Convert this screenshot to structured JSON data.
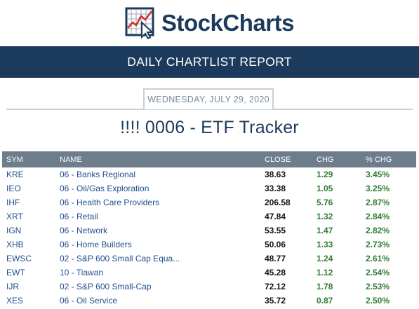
{
  "brand": {
    "logo_text": "StockCharts"
  },
  "banner": {
    "title": "DAILY CHARTLIST REPORT"
  },
  "report": {
    "date": "WEDNESDAY, JULY 29, 2020",
    "title": "!!!! 0006 - ETF Tracker"
  },
  "table": {
    "headers": {
      "sym": "SYM",
      "name": "NAME",
      "close": "CLOSE",
      "chg": "CHG",
      "pct": "% CHG"
    },
    "rows": [
      {
        "sym": "KRE",
        "name": "06 - Banks Regional",
        "close": "38.63",
        "chg": "1.29",
        "pct": "3.45%"
      },
      {
        "sym": "IEO",
        "name": "06 - Oil/Gas Exploration",
        "close": "33.38",
        "chg": "1.05",
        "pct": "3.25%"
      },
      {
        "sym": "IHF",
        "name": "06 - Health Care Providers",
        "close": "206.58",
        "chg": "5.76",
        "pct": "2.87%"
      },
      {
        "sym": "XRT",
        "name": "06 - Retail",
        "close": "47.84",
        "chg": "1.32",
        "pct": "2.84%"
      },
      {
        "sym": "IGN",
        "name": "06 - Network",
        "close": "53.55",
        "chg": "1.47",
        "pct": "2.82%"
      },
      {
        "sym": "XHB",
        "name": "06 - Home Builders",
        "close": "50.06",
        "chg": "1.33",
        "pct": "2.73%"
      },
      {
        "sym": "EWSC",
        "name": "02 - S&P 600 Small Cap Equa...",
        "close": "48.77",
        "chg": "1.24",
        "pct": "2.61%"
      },
      {
        "sym": "EWT",
        "name": "10 - Tiawan",
        "close": "45.28",
        "chg": "1.12",
        "pct": "2.54%"
      },
      {
        "sym": "IJR",
        "name": "02 - S&P 600 Small-Cap",
        "close": "72.12",
        "chg": "1.78",
        "pct": "2.53%"
      },
      {
        "sym": "XES",
        "name": "06 - Oil Service",
        "close": "35.72",
        "chg": "0.87",
        "pct": "2.50%"
      }
    ]
  },
  "colors": {
    "brand_navy": "#1b3a5c",
    "header_gray": "#6d7d8c",
    "link_blue": "#1f4e8c",
    "positive_green": "#2e7d32",
    "logo_red": "#d32f2f"
  },
  "icons": {
    "logo": "stockcharts-chart-cursor-icon"
  }
}
